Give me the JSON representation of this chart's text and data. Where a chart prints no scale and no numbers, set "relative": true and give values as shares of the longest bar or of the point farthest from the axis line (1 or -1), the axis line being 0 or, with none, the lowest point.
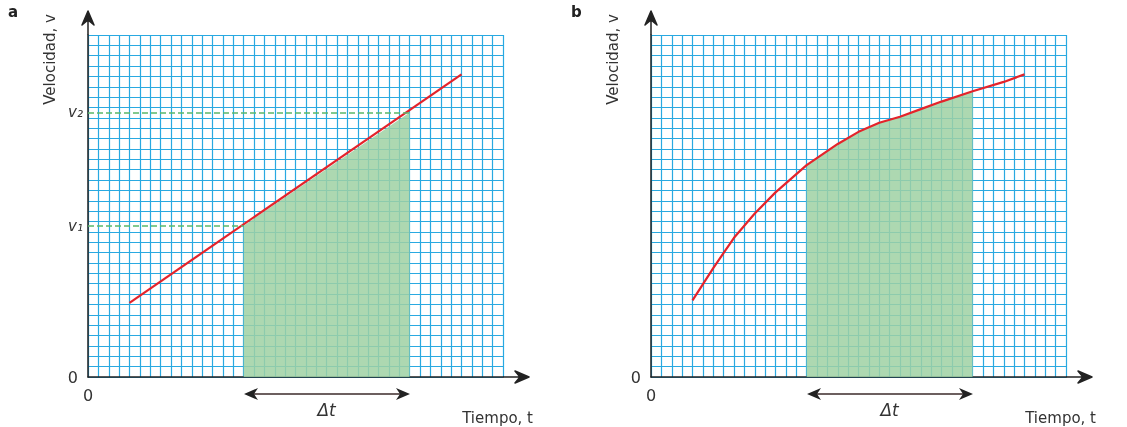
{
  "chart_data": [
    {
      "type": "line",
      "title": "a",
      "xlabel": "Tiempo, t",
      "ylabel": "Velocidad, v",
      "relative": true,
      "grid": true,
      "marker": "none",
      "line_style": "solid",
      "categories": [
        null,
        null,
        null,
        null,
        null,
        null,
        null,
        null,
        null,
        null,
        null,
        null,
        null,
        null,
        null,
        null,
        null,
        null,
        null,
        null,
        null,
        null,
        null,
        null,
        null,
        null,
        null,
        null,
        null,
        null,
        null,
        null,
        null,
        null,
        null,
        null,
        null,
        null,
        null,
        null,
        null
      ],
      "series": [
        {
          "color": "#e4232b",
          "values": [
            null,
            null,
            null,
            null,
            0.245,
            null,
            null,
            null,
            null,
            null,
            null,
            null,
            null,
            null,
            null,
            null,
            null,
            null,
            null,
            null,
            null,
            null,
            null,
            null,
            null,
            null,
            null,
            null,
            null,
            null,
            null,
            null,
            null,
            null,
            null,
            null,
            1,
            null,
            null,
            null,
            null
          ]
        },
        {
          "type": "area",
          "color": "#9fd1a3",
          "values": [
            null,
            null,
            null,
            null,
            null,
            null,
            null,
            null,
            null,
            null,
            null,
            null,
            null,
            null,
            null,
            0.5,
            null,
            null,
            null,
            null,
            null,
            null,
            null,
            null,
            null,
            null,
            null,
            null,
            null,
            null,
            null,
            0.874,
            null,
            null,
            null,
            null,
            null,
            null,
            null,
            null,
            null
          ]
        }
      ],
      "ref_lines": [
        {
          "axis": "y",
          "value": 0.5,
          "label": "v₁",
          "color": "#5bb86a",
          "line_style": "dashed"
        },
        {
          "axis": "y",
          "value": 0.874,
          "label": "v₂",
          "color": "#5bb86a",
          "line_style": "dashed"
        }
      ],
      "annotations": [
        "0",
        "0",
        "Δt"
      ]
    },
    {
      "type": "line",
      "title": "b",
      "xlabel": "Tiempo, t",
      "ylabel": "Velocidad, v",
      "relative": true,
      "grid": true,
      "marker": "none",
      "line_style": "solid",
      "categories": [
        null,
        null,
        null,
        null,
        null,
        null,
        null,
        null,
        null,
        null,
        null,
        null,
        null,
        null,
        null,
        null,
        null,
        null,
        null,
        null,
        null,
        null,
        null,
        null,
        null,
        null,
        null,
        null,
        null,
        null,
        null,
        null,
        null,
        null,
        null,
        null,
        null,
        null,
        null,
        null,
        null
      ],
      "series": [
        {
          "color": "#e4232b",
          "values": [
            null,
            null,
            null,
            null,
            0.253,
            null,
            0.36,
            null,
            0.46,
            null,
            0.54,
            null,
            0.61,
            null,
            null,
            0.7,
            null,
            null,
            0.77,
            null,
            0.81,
            null,
            0.84,
            null,
            0.86,
            null,
            0.885,
            null,
            0.91,
            null,
            null,
            0.944,
            null,
            null,
            0.975,
            null,
            1,
            null,
            null,
            null,
            null
          ]
        },
        {
          "type": "area",
          "color": "#9fd1a3",
          "values": [
            null,
            null,
            null,
            null,
            null,
            null,
            null,
            null,
            null,
            null,
            null,
            null,
            null,
            null,
            null,
            0.7,
            null,
            null,
            0.77,
            null,
            0.81,
            null,
            0.84,
            null,
            0.86,
            null,
            0.885,
            null,
            0.91,
            null,
            null,
            0.944,
            null,
            null,
            null,
            null,
            null,
            null,
            null,
            null,
            null
          ]
        }
      ],
      "annotations": [
        "0",
        "0",
        "Δt"
      ]
    }
  ]
}
